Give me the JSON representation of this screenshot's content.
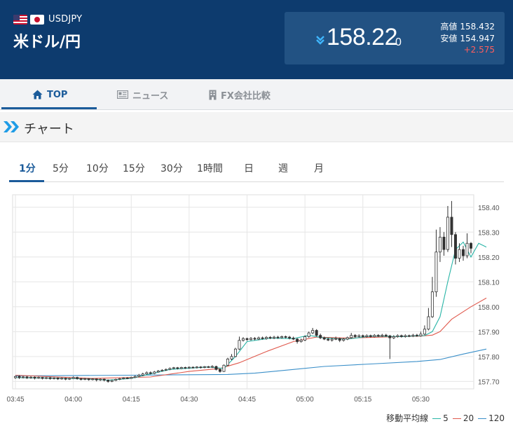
{
  "header": {
    "pair_code": "USDJPY",
    "pair_name": "米ドル/円",
    "price_main": "158.22",
    "price_sub": "0",
    "high_label": "高値",
    "high_value": "158.432",
    "low_label": "安値",
    "low_value": "154.947",
    "change": "+2.575",
    "direction_icon": "down-chevron-icon",
    "colors": {
      "header_bg": "#0d3b6e",
      "box_bg": "#225283",
      "change": "#ff5e5e"
    }
  },
  "nav": {
    "items": [
      {
        "label": "TOP",
        "icon": "home-icon",
        "active": true
      },
      {
        "label": "ニュース",
        "icon": "newspaper-icon",
        "active": false
      },
      {
        "label": "FX会社比較",
        "icon": "building-icon",
        "active": false
      }
    ]
  },
  "section": {
    "title": "チャート",
    "icon": "double-chevron-icon"
  },
  "tabs": [
    "1分",
    "5分",
    "10分",
    "15分",
    "30分",
    "1時間",
    "日",
    "週",
    "月"
  ],
  "active_tab": "1分",
  "legend": {
    "title": "移動平均線",
    "items": [
      {
        "label": "5",
        "color": "#2ab5a7"
      },
      {
        "label": "20",
        "color": "#e05a4e"
      },
      {
        "label": "120",
        "color": "#3a8fc9"
      }
    ]
  },
  "chart_data": {
    "type": "candlestick",
    "x_ticks": [
      "03:45",
      "04:00",
      "04:15",
      "04:30",
      "04:45",
      "05:00",
      "05:15",
      "05:30"
    ],
    "y_ticks": [
      "158.40",
      "158.30",
      "158.20",
      "158.10",
      "158.00",
      "157.90",
      "157.80",
      "157.70"
    ],
    "ylim": [
      157.67,
      158.45
    ],
    "grid": true,
    "candles": [
      [
        157.715,
        157.72,
        157.71,
        157.722
      ],
      [
        157.72,
        157.715,
        157.71,
        157.725
      ],
      [
        157.715,
        157.718,
        157.712,
        157.722
      ],
      [
        157.718,
        157.714,
        157.71,
        157.722
      ],
      [
        157.714,
        157.717,
        157.711,
        157.721
      ],
      [
        157.717,
        157.713,
        157.708,
        157.72
      ],
      [
        157.713,
        157.716,
        157.71,
        157.719
      ],
      [
        157.716,
        157.712,
        157.708,
        157.718
      ],
      [
        157.712,
        157.715,
        157.709,
        157.718
      ],
      [
        157.715,
        157.711,
        157.707,
        157.718
      ],
      [
        157.711,
        157.714,
        157.708,
        157.717
      ],
      [
        157.714,
        157.71,
        157.706,
        157.716
      ],
      [
        157.71,
        157.713,
        157.707,
        157.716
      ],
      [
        157.713,
        157.709,
        157.705,
        157.715
      ],
      [
        157.709,
        157.712,
        157.706,
        157.715
      ],
      [
        157.712,
        157.716,
        157.709,
        157.72
      ],
      [
        157.716,
        157.711,
        157.707,
        157.719
      ],
      [
        157.711,
        157.708,
        157.704,
        157.714
      ],
      [
        157.708,
        157.711,
        157.705,
        157.714
      ],
      [
        157.711,
        157.707,
        157.703,
        157.713
      ],
      [
        157.707,
        157.71,
        157.704,
        157.713
      ],
      [
        157.71,
        157.706,
        157.7,
        157.712
      ],
      [
        157.706,
        157.709,
        157.702,
        157.712
      ],
      [
        157.709,
        157.705,
        157.7,
        157.711
      ],
      [
        157.705,
        157.7,
        157.695,
        157.708
      ],
      [
        157.7,
        157.704,
        157.697,
        157.707
      ],
      [
        157.704,
        157.708,
        157.701,
        157.711
      ],
      [
        157.708,
        157.711,
        157.705,
        157.714
      ],
      [
        157.711,
        157.714,
        157.708,
        157.717
      ],
      [
        157.714,
        157.712,
        157.709,
        157.717
      ],
      [
        157.712,
        157.716,
        157.71,
        157.719
      ],
      [
        157.716,
        157.72,
        157.713,
        157.724
      ],
      [
        157.72,
        157.725,
        157.718,
        157.73
      ],
      [
        157.725,
        157.73,
        157.722,
        157.735
      ],
      [
        157.73,
        157.735,
        157.727,
        157.74
      ],
      [
        157.735,
        157.732,
        157.728,
        157.74
      ],
      [
        157.732,
        157.738,
        157.729,
        157.742
      ],
      [
        157.738,
        157.742,
        157.735,
        157.746
      ],
      [
        157.742,
        157.745,
        157.739,
        157.749
      ],
      [
        157.745,
        157.748,
        157.742,
        157.752
      ],
      [
        157.748,
        157.752,
        157.745,
        157.756
      ],
      [
        157.752,
        157.755,
        157.749,
        157.758
      ],
      [
        157.755,
        157.752,
        157.748,
        157.758
      ],
      [
        157.752,
        157.756,
        157.749,
        157.759
      ],
      [
        157.756,
        157.754,
        157.75,
        157.759
      ],
      [
        157.754,
        157.757,
        157.751,
        157.76
      ],
      [
        157.757,
        157.755,
        157.752,
        157.76
      ],
      [
        157.755,
        157.758,
        157.752,
        157.761
      ],
      [
        157.758,
        157.756,
        157.752,
        157.761
      ],
      [
        157.756,
        157.759,
        157.753,
        157.762
      ],
      [
        157.759,
        157.757,
        157.754,
        157.762
      ],
      [
        157.757,
        157.76,
        157.754,
        157.765
      ],
      [
        157.76,
        157.748,
        157.744,
        157.763
      ],
      [
        157.748,
        157.74,
        157.735,
        157.752
      ],
      [
        157.74,
        157.765,
        157.738,
        157.768
      ],
      [
        157.765,
        157.79,
        157.762,
        157.795
      ],
      [
        157.79,
        157.8,
        157.785,
        157.81
      ],
      [
        157.8,
        157.83,
        157.797,
        157.835
      ],
      [
        157.83,
        157.865,
        157.826,
        157.88
      ],
      [
        157.865,
        157.872,
        157.86,
        157.878
      ],
      [
        157.872,
        157.868,
        157.863,
        157.876
      ],
      [
        157.868,
        157.873,
        157.864,
        157.878
      ],
      [
        157.873,
        157.87,
        157.865,
        157.878
      ],
      [
        157.87,
        157.875,
        157.866,
        157.88
      ],
      [
        157.875,
        157.872,
        157.868,
        157.88
      ],
      [
        157.872,
        157.877,
        157.868,
        157.882
      ],
      [
        157.877,
        157.874,
        157.87,
        157.882
      ],
      [
        157.874,
        157.878,
        157.87,
        157.883
      ],
      [
        157.878,
        157.876,
        157.871,
        157.883
      ],
      [
        157.876,
        157.88,
        157.872,
        157.884
      ],
      [
        157.88,
        157.878,
        157.873,
        157.884
      ],
      [
        157.878,
        157.874,
        157.869,
        157.883
      ],
      [
        157.874,
        157.87,
        157.866,
        157.88
      ],
      [
        157.87,
        157.86,
        157.852,
        157.874
      ],
      [
        157.86,
        157.866,
        157.856,
        157.872
      ],
      [
        157.866,
        157.88,
        157.862,
        157.885
      ],
      [
        157.88,
        157.895,
        157.876,
        157.9
      ],
      [
        157.895,
        157.905,
        157.89,
        157.915
      ],
      [
        157.905,
        157.885,
        157.88,
        157.91
      ],
      [
        157.885,
        157.875,
        157.87,
        157.892
      ],
      [
        157.875,
        157.87,
        157.866,
        157.88
      ],
      [
        157.87,
        157.866,
        157.862,
        157.876
      ],
      [
        157.866,
        157.87,
        157.86,
        157.875
      ],
      [
        157.87,
        157.872,
        157.866,
        157.88
      ],
      [
        157.872,
        157.865,
        157.858,
        157.876
      ],
      [
        157.865,
        157.87,
        157.86,
        157.875
      ],
      [
        157.87,
        157.876,
        157.866,
        157.88
      ],
      [
        157.876,
        157.885,
        157.872,
        157.895
      ],
      [
        157.885,
        157.88,
        157.875,
        157.89
      ],
      [
        157.88,
        157.884,
        157.876,
        157.889
      ],
      [
        157.884,
        157.88,
        157.876,
        157.888
      ],
      [
        157.88,
        157.884,
        157.876,
        157.889
      ],
      [
        157.884,
        157.88,
        157.876,
        157.888
      ],
      [
        157.88,
        157.885,
        157.877,
        157.89
      ],
      [
        157.885,
        157.882,
        157.878,
        157.89
      ],
      [
        157.882,
        157.886,
        157.878,
        157.891
      ],
      [
        157.886,
        157.883,
        157.879,
        157.891
      ],
      [
        157.883,
        157.875,
        157.79,
        157.887
      ],
      [
        157.875,
        157.88,
        157.87,
        157.886
      ],
      [
        157.88,
        157.884,
        157.876,
        157.889
      ],
      [
        157.884,
        157.88,
        157.876,
        157.888
      ],
      [
        157.88,
        157.884,
        157.876,
        157.889
      ],
      [
        157.884,
        157.882,
        157.878,
        157.888
      ],
      [
        157.882,
        157.886,
        157.878,
        157.891
      ],
      [
        157.886,
        157.883,
        157.879,
        157.891
      ],
      [
        157.883,
        157.89,
        157.88,
        157.9
      ],
      [
        157.89,
        157.91,
        157.886,
        157.925
      ],
      [
        157.91,
        157.96,
        157.905,
        157.995
      ],
      [
        157.96,
        158.06,
        157.955,
        158.12
      ],
      [
        158.06,
        158.22,
        158.04,
        158.31
      ],
      [
        158.22,
        158.28,
        158.18,
        158.32
      ],
      [
        158.28,
        158.23,
        158.205,
        158.3
      ],
      [
        158.23,
        158.36,
        158.22,
        158.405
      ],
      [
        158.36,
        158.29,
        158.24,
        158.425
      ],
      [
        158.29,
        158.195,
        158.17,
        158.3
      ],
      [
        158.195,
        158.23,
        158.18,
        158.255
      ],
      [
        158.23,
        158.205,
        158.185,
        158.245
      ],
      [
        158.205,
        158.255,
        158.195,
        158.295
      ],
      [
        158.255,
        158.235,
        158.215,
        158.26
      ]
    ],
    "ma5": [
      [
        0,
        157.715
      ],
      [
        10,
        157.713
      ],
      [
        20,
        157.709
      ],
      [
        24,
        157.705
      ],
      [
        30,
        157.712
      ],
      [
        40,
        157.748
      ],
      [
        50,
        157.758
      ],
      [
        54,
        157.752
      ],
      [
        57,
        157.8
      ],
      [
        60,
        157.86
      ],
      [
        66,
        157.874
      ],
      [
        72,
        157.872
      ],
      [
        76,
        157.885
      ],
      [
        80,
        157.875
      ],
      [
        86,
        157.87
      ],
      [
        92,
        157.882
      ],
      [
        100,
        157.88
      ],
      [
        106,
        157.884
      ],
      [
        108,
        157.9
      ],
      [
        110,
        157.96
      ],
      [
        112,
        158.1
      ],
      [
        114,
        158.23
      ],
      [
        116,
        158.26
      ],
      [
        118,
        158.2
      ],
      [
        120,
        158.255
      ],
      [
        122,
        158.24
      ]
    ],
    "ma20": [
      [
        0,
        157.725
      ],
      [
        20,
        157.712
      ],
      [
        35,
        157.718
      ],
      [
        45,
        157.74
      ],
      [
        53,
        157.752
      ],
      [
        58,
        157.775
      ],
      [
        65,
        157.82
      ],
      [
        72,
        157.86
      ],
      [
        78,
        157.878
      ],
      [
        86,
        157.874
      ],
      [
        95,
        157.878
      ],
      [
        105,
        157.882
      ],
      [
        108,
        157.886
      ],
      [
        110,
        157.9
      ],
      [
        113,
        157.95
      ],
      [
        118,
        158.0
      ],
      [
        122,
        158.035
      ]
    ],
    "ma120": [
      [
        0,
        157.722
      ],
      [
        30,
        157.725
      ],
      [
        55,
        157.728
      ],
      [
        62,
        157.733
      ],
      [
        72,
        157.748
      ],
      [
        80,
        157.76
      ],
      [
        92,
        157.77
      ],
      [
        104,
        157.78
      ],
      [
        110,
        157.788
      ],
      [
        116,
        157.81
      ],
      [
        122,
        157.83
      ]
    ]
  }
}
